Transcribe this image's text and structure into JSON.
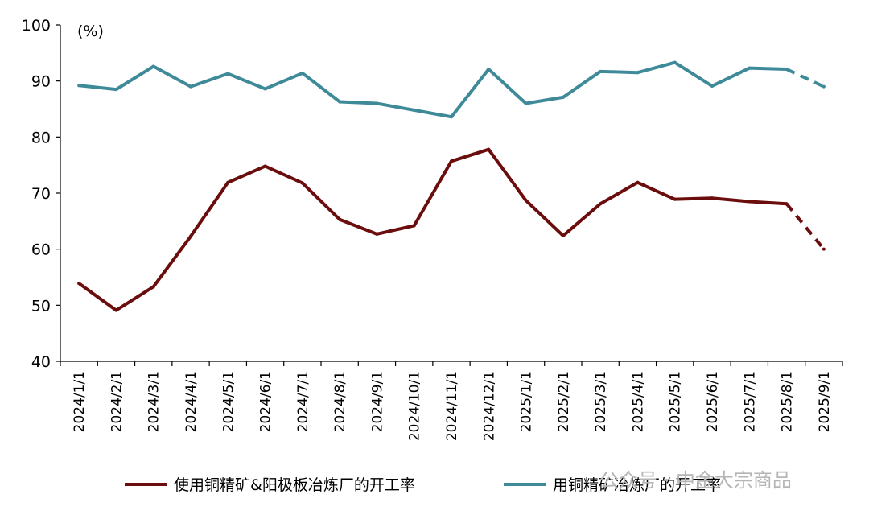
{
  "chart_data": {
    "type": "line",
    "y_unit_label": "(%)",
    "ylim": [
      40,
      100
    ],
    "yticks": [
      40,
      50,
      60,
      70,
      80,
      90,
      100
    ],
    "grid": false,
    "legend_position": "bottom",
    "categories": [
      "2024/1/1",
      "2024/2/1",
      "2024/3/1",
      "2024/4/1",
      "2024/5/1",
      "2024/6/1",
      "2024/7/1",
      "2024/8/1",
      "2024/9/1",
      "2024/10/1",
      "2024/11/1",
      "2024/12/1",
      "2025/1/1",
      "2025/2/1",
      "2025/3/1",
      "2025/4/1",
      "2025/5/1",
      "2025/6/1",
      "2025/7/1",
      "2025/8/1",
      "2025/9/1"
    ],
    "series": [
      {
        "name": "使用铜精矿&阳极板冶炼厂的开工率",
        "color": "#6b0d0d",
        "values": [
          53.9,
          49.1,
          53.3,
          62.3,
          71.9,
          74.8,
          71.8,
          65.3,
          62.7,
          64.2,
          75.7,
          77.8,
          68.7,
          62.4,
          68.1,
          71.9,
          68.9,
          69.1,
          68.5,
          68.1,
          60.0
        ],
        "dashed_from_index": 19
      },
      {
        "name": "用铜精矿冶炼厂的开工率",
        "color": "#3f8a99",
        "values": [
          89.2,
          88.5,
          92.6,
          89.0,
          91.3,
          88.6,
          91.4,
          86.3,
          86.0,
          84.8,
          83.6,
          92.1,
          86.0,
          87.1,
          91.7,
          91.5,
          93.3,
          89.1,
          92.3,
          92.1,
          89.0
        ],
        "dashed_from_index": 19
      }
    ]
  },
  "watermark": "公众号 · 中金大宗商品"
}
